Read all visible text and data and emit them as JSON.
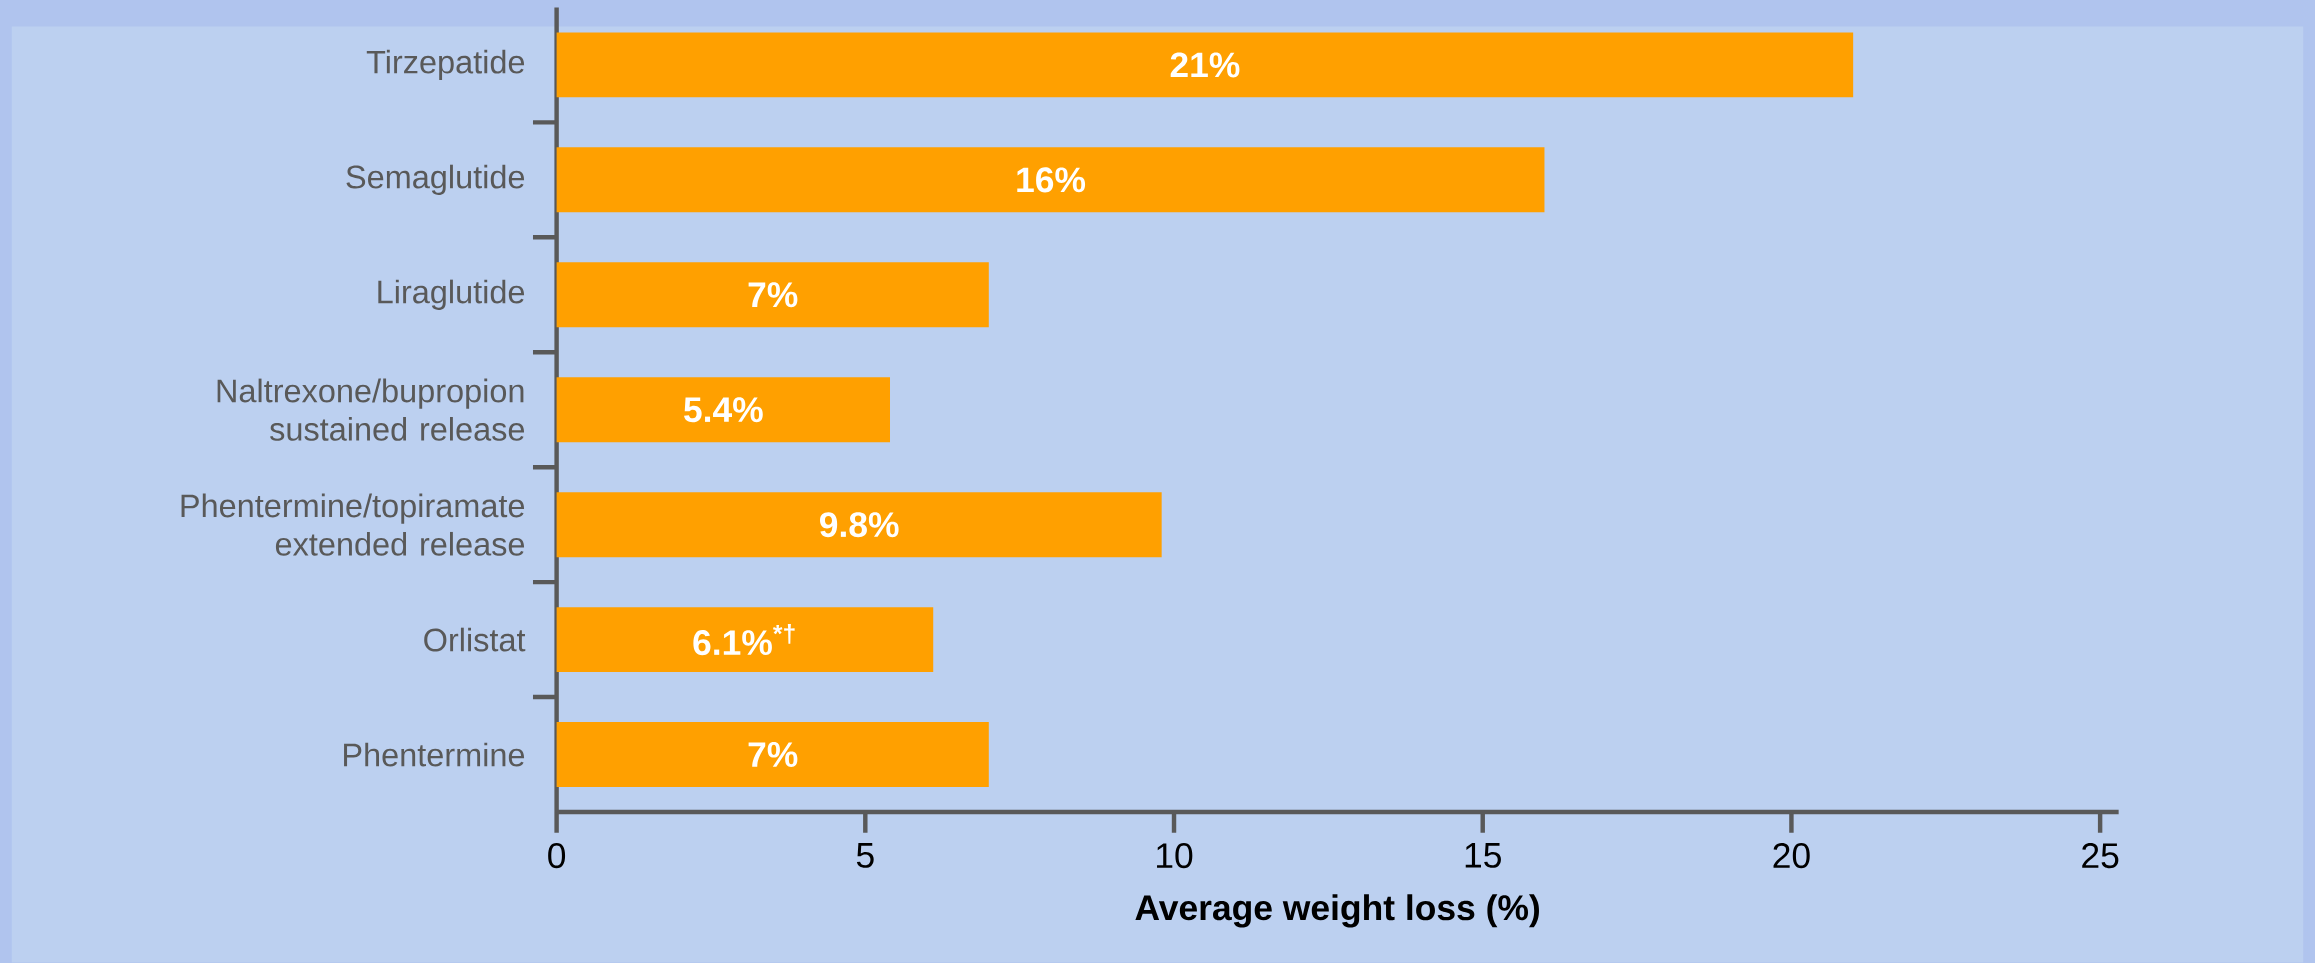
{
  "chart_data": {
    "type": "bar",
    "orientation": "horizontal",
    "categories": [
      "Tirzepatide",
      "Semaglutide",
      "Liraglutide",
      "Naltrexone/bupropion sustained release",
      "Phentermine/topiramate extended release",
      "Orlistat",
      "Phentermine"
    ],
    "values": [
      21,
      16,
      7,
      5.4,
      9.8,
      6.1,
      7
    ],
    "value_labels": [
      "21%",
      "16%",
      "7%",
      "5.4%",
      "9.8%",
      "6.1%$^{*†}$",
      "7%"
    ],
    "color": "#ffa000",
    "xlim": [
      0,
      25.3
    ],
    "xticks": [
      0,
      5,
      10,
      15,
      20,
      25
    ],
    "xlabel": "Average weight loss (%)"
  }
}
